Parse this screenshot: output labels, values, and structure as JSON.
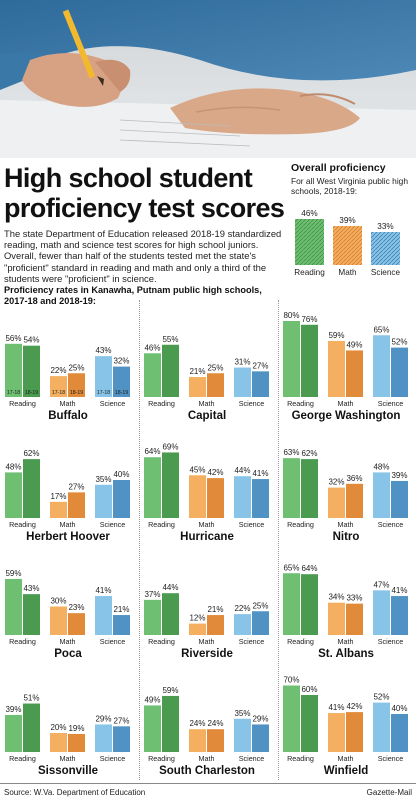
{
  "headline": "High school student proficiency test scores",
  "intro": "The state Department of Education released 2018-19 standardized reading, math and science test scores for high school juniors. Overall, fewer than half of the students tested met the state's \"proficient\" standard in reading and math and only a third of the students were \"proficient\" in science.",
  "overall": {
    "title": "Overall proficiency",
    "subtitle": "For all West Virginia public high schools, 2018-19:"
  },
  "schools_caption": "Proficiency rates in Kanawha, Putnam public high schools, 2017-18 and 2018-19:",
  "footer": {
    "source": "Source: W.Va. Department of Education",
    "credit": "Gazette-Mail"
  },
  "colors": {
    "reading": "#6fbf73",
    "reading_dark": "#4a9a50",
    "math": "#f4b060",
    "math_dark": "#e08a3a",
    "science": "#88c4e8",
    "science_dark": "#4f92c3"
  },
  "chart_data": [
    {
      "type": "bar",
      "title": "Overall proficiency",
      "categories": [
        "Reading",
        "Math",
        "Science"
      ],
      "values": [
        46,
        39,
        33
      ]
    },
    {
      "type": "bar",
      "subplots": [
        {
          "title": "Buffalo",
          "reading": [
            56,
            54
          ],
          "math": [
            22,
            25
          ],
          "science": [
            43,
            32
          ],
          "year_labels": [
            "17-18",
            "18-19"
          ]
        },
        {
          "title": "Capital",
          "reading": [
            46,
            55
          ],
          "math": [
            21,
            25
          ],
          "science": [
            31,
            27
          ]
        },
        {
          "title": "George Washington",
          "reading": [
            80,
            76
          ],
          "math": [
            59,
            49
          ],
          "science": [
            65,
            52
          ]
        },
        {
          "title": "Herbert Hoover",
          "reading": [
            48,
            62
          ],
          "math": [
            17,
            27
          ],
          "science": [
            35,
            40
          ]
        },
        {
          "title": "Hurricane",
          "reading": [
            64,
            69
          ],
          "math": [
            45,
            42
          ],
          "science": [
            44,
            41
          ]
        },
        {
          "title": "Nitro",
          "reading": [
            63,
            62
          ],
          "math": [
            32,
            36
          ],
          "science": [
            48,
            39
          ]
        },
        {
          "title": "Poca",
          "reading": [
            59,
            43
          ],
          "math": [
            30,
            23
          ],
          "science": [
            41,
            21
          ]
        },
        {
          "title": "Riverside",
          "reading": [
            37,
            44
          ],
          "math": [
            12,
            21
          ],
          "science": [
            22,
            25
          ]
        },
        {
          "title": "St. Albans",
          "reading": [
            65,
            64
          ],
          "math": [
            34,
            33
          ],
          "science": [
            47,
            41
          ]
        },
        {
          "title": "Sissonville",
          "reading": [
            39,
            51
          ],
          "math": [
            20,
            19
          ],
          "science": [
            29,
            27
          ]
        },
        {
          "title": "South Charleston",
          "reading": [
            49,
            59
          ],
          "math": [
            24,
            24
          ],
          "science": [
            35,
            29
          ]
        },
        {
          "title": "Winfield",
          "reading": [
            70,
            60
          ],
          "math": [
            41,
            42
          ],
          "science": [
            52,
            40
          ]
        }
      ],
      "categories": [
        "Reading",
        "Math",
        "Science"
      ]
    }
  ]
}
